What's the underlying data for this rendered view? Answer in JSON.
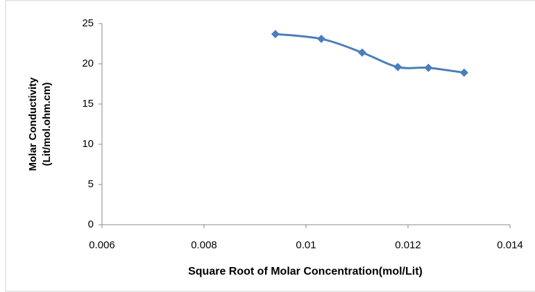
{
  "chart_data": {
    "type": "scatter-line",
    "xlabel": "Square Root of Molar Concentration(mol/Lit)",
    "ylabel": [
      "Molar Conductivity",
      "(Lit/mol.ohm.cm)"
    ],
    "x": [
      0.0094,
      0.0103,
      0.0111,
      0.0118,
      0.0124,
      0.0131
    ],
    "values": [
      23.7,
      23.1,
      21.4,
      19.6,
      19.5,
      18.9
    ],
    "color": "#4a7ebb",
    "xlim": [
      0.006,
      0.014
    ],
    "xticks": [
      0.006,
      0.008,
      0.01,
      0.012,
      0.014
    ],
    "ylim": [
      0,
      25
    ],
    "yticks": [
      0,
      5,
      10,
      15,
      20,
      25
    ],
    "grid": false,
    "smooth": true
  }
}
